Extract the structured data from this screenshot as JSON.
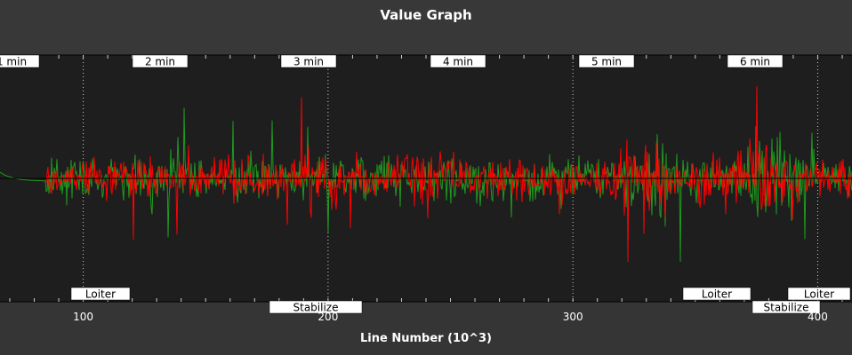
{
  "title": "Value Graph",
  "chart_data": {
    "type": "line",
    "title": "Value Graph",
    "xlabel": "Line Number (10^3)",
    "ylabel": "",
    "xlim": [
      66,
      414
    ],
    "x_ticks": [
      100,
      200,
      300,
      400
    ],
    "grid": true,
    "time_markers": [
      {
        "label": "1 min",
        "x": 100
      },
      {
        "label": "2 min",
        "x": 130
      },
      {
        "label": "3 min",
        "x": 190
      },
      {
        "label": "4 min",
        "x": 250
      },
      {
        "label": "5 min",
        "x": 310
      },
      {
        "label": "6 min",
        "x": 370
      }
    ],
    "mode_markers": [
      {
        "label": "Loiter",
        "x": 107
      },
      {
        "label": "Stabilize",
        "x": 195
      },
      {
        "label": "Loiter",
        "x": 351
      },
      {
        "label": "Stabilize",
        "x": 387
      },
      {
        "label": "Loiter",
        "x": 411
      }
    ],
    "series": [
      {
        "color": "#1f9a1f"
      },
      {
        "color": "#ff0000"
      }
    ]
  }
}
